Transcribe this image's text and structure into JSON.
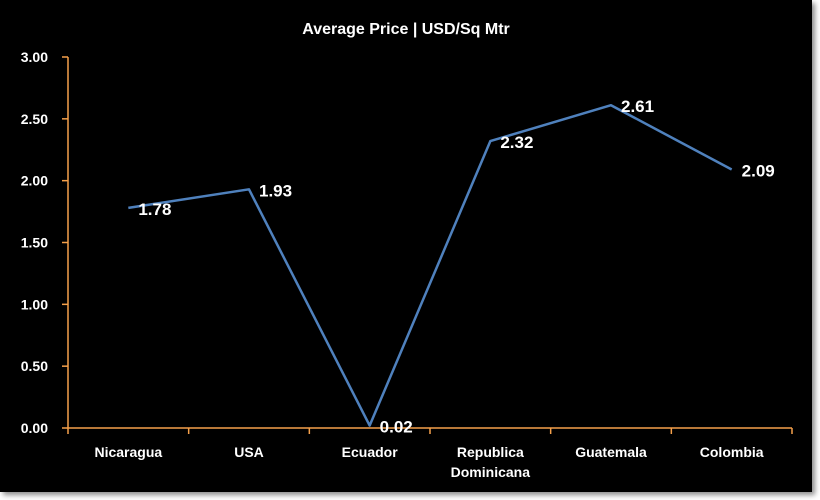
{
  "chart_data": {
    "type": "line",
    "title": "Average Price | USD/Sq Mtr",
    "xlabel": "",
    "ylabel": "",
    "categories": [
      "Nicaragua",
      "USA",
      "Ecuador",
      "Republica Dominicana",
      "Guatemala",
      "Colombia"
    ],
    "category_lines": [
      [
        "Nicaragua"
      ],
      [
        "USA"
      ],
      [
        "Ecuador"
      ],
      [
        "Republica",
        "Dominicana"
      ],
      [
        "Guatemala"
      ],
      [
        "Colombia"
      ]
    ],
    "series": [
      {
        "values": [
          1.78,
          1.93,
          0.02,
          2.32,
          2.61,
          2.09
        ],
        "color": "#4f81bd"
      }
    ],
    "data_labels": [
      "1.78",
      "1.93",
      "0.02",
      "2.32",
      "2.61",
      "2.09"
    ],
    "ylim": [
      0,
      3
    ],
    "yticks": [
      0,
      0.5,
      1,
      1.5,
      2,
      2.5,
      3
    ],
    "ytick_labels": [
      "0.00",
      "0.50",
      "1.00",
      "1.50",
      "2.00",
      "2.50",
      "3.00"
    ],
    "grid": false,
    "legend": "none",
    "background": "#000000",
    "axis_color": "#f5a04a",
    "text_color": "#ffffff"
  }
}
